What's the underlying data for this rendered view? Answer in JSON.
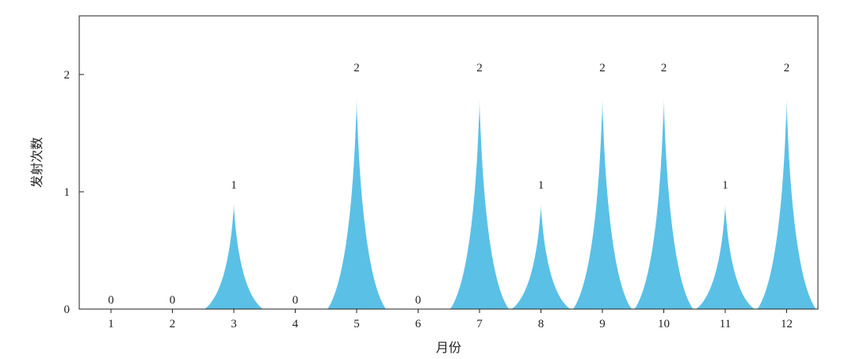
{
  "chart_data": {
    "type": "bar",
    "bar_style": "pointed-spike",
    "categories": [
      "1",
      "2",
      "3",
      "4",
      "5",
      "6",
      "7",
      "8",
      "9",
      "10",
      "11",
      "12"
    ],
    "values": [
      0,
      0,
      1,
      0,
      2,
      0,
      2,
      1,
      2,
      2,
      1,
      2
    ],
    "xlabel": "月份",
    "ylabel": "发射次数",
    "ylim": [
      0,
      2.5
    ],
    "yticks": [
      0,
      1,
      2
    ],
    "grid": false,
    "legend": "none",
    "data_labels": true,
    "colors": {
      "fill": "#5bc0e6",
      "fill_top": "#cdeaf6",
      "axis": "#222222"
    }
  }
}
